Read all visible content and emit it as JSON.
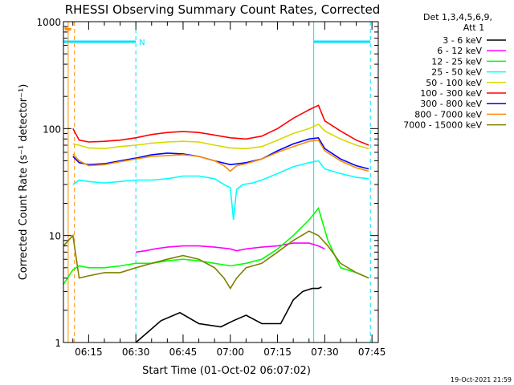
{
  "chart_data": {
    "type": "line",
    "title": "RHESSI Observing Summary Count Rates, Corrected",
    "xlabel": "Start Time (01-Oct-02 06:07:02)",
    "ylabel": "Corrected Count Rate (s⁻¹ detector⁻¹)",
    "yscale": "log",
    "ylim": [
      1,
      1000
    ],
    "xlim_minutes_after_0600": [
      7.0,
      107.0
    ],
    "x_tick_labels": [
      "06:15",
      "06:30",
      "06:45",
      "07:00",
      "07:15",
      "07:30",
      "07:45"
    ],
    "x_tick_minutes_after_0600": [
      15,
      30,
      45,
      60,
      75,
      90,
      105
    ],
    "y_tick_labels": [
      "1",
      "10",
      "100",
      "1000"
    ],
    "y_tick_values": [
      1,
      10,
      100,
      1000
    ],
    "legend_header": [
      "Det 1,3,4,5,6,9,",
      "Att 1"
    ],
    "legend_position": "top-right, outside plot",
    "timestamp": "19-Oct-2021 21:59",
    "flag_labels": {
      "s": "S",
      "n": "N"
    },
    "flags": [
      {
        "name": "S",
        "color": "#ff8c00",
        "level": 850,
        "x_start": 7.5,
        "x_end": 9.5
      },
      {
        "name": "N",
        "color": "#00e0ff",
        "level": 650,
        "x_start": 7.0,
        "x_end": 30.0
      },
      {
        "name": "N",
        "color": "#00e0ff",
        "level": 650,
        "x_start": 86.5,
        "x_end": 104.5
      }
    ],
    "vertical_lines": [
      {
        "x": 8.5,
        "color": "#ff8c00",
        "style": "solid"
      },
      {
        "x": 10.5,
        "color": "#ff8c00",
        "style": "dashed"
      },
      {
        "x": 30.0,
        "color": "#00e0ff",
        "style": "dashed"
      },
      {
        "x": 86.5,
        "color": "#00e0ff",
        "style": "solid"
      },
      {
        "x": 104.5,
        "color": "#00e0ff",
        "style": "dashed"
      }
    ],
    "series": [
      {
        "name": "3 - 6 keV",
        "color": "#000000",
        "x": [
          30,
          38,
          44,
          50,
          57,
          61,
          65,
          70,
          76,
          80,
          83,
          86,
          88,
          89
        ],
        "y": [
          1.0,
          1.6,
          1.9,
          1.5,
          1.4,
          1.6,
          1.8,
          1.5,
          1.5,
          2.5,
          3.0,
          3.2,
          3.2,
          3.3
        ]
      },
      {
        "name": "6 - 12 keV",
        "color": "#ff00ff",
        "x": [
          30,
          33,
          36,
          40,
          45,
          50,
          55,
          60,
          62,
          65,
          70,
          75,
          80,
          85,
          88,
          90
        ],
        "y": [
          7.0,
          7.2,
          7.5,
          7.8,
          8.0,
          8.0,
          7.8,
          7.5,
          7.2,
          7.5,
          7.8,
          8.0,
          8.5,
          8.5,
          8.0,
          7.5
        ]
      },
      {
        "name": "12 - 25 keV",
        "color": "#00ff00",
        "x": [
          7,
          10,
          12,
          15,
          20,
          25,
          30,
          35,
          40,
          45,
          50,
          55,
          60,
          65,
          70,
          75,
          80,
          85,
          88,
          91,
          95,
          100,
          104
        ],
        "y": [
          3.5,
          4.8,
          5.2,
          5.0,
          5.0,
          5.2,
          5.5,
          5.5,
          5.8,
          6.0,
          5.8,
          5.5,
          5.2,
          5.5,
          6.0,
          7.5,
          10.0,
          14.0,
          18.0,
          9.0,
          5.0,
          4.5,
          4.0
        ]
      },
      {
        "name": "25 - 50 keV",
        "color": "#00ffff",
        "x": [
          10,
          12,
          15,
          20,
          25,
          30,
          35,
          40,
          45,
          50,
          55,
          58,
          60,
          61,
          62,
          64,
          67,
          70,
          75,
          80,
          85,
          88,
          90,
          95,
          100,
          104
        ],
        "y": [
          30,
          33,
          32,
          31,
          32,
          33,
          33,
          34,
          36,
          36,
          34,
          30,
          28,
          14,
          27,
          30,
          31,
          33,
          38,
          44,
          48,
          50,
          42,
          38,
          35,
          34
        ]
      },
      {
        "name": "50 - 100 keV",
        "color": "#d8d800",
        "x": [
          10,
          12,
          15,
          20,
          25,
          30,
          35,
          40,
          45,
          50,
          55,
          60,
          65,
          70,
          75,
          80,
          85,
          88,
          90,
          95,
          100,
          104
        ],
        "y": [
          72,
          70,
          66,
          65,
          68,
          70,
          73,
          75,
          76,
          75,
          70,
          66,
          65,
          68,
          78,
          90,
          100,
          110,
          95,
          80,
          70,
          65
        ]
      },
      {
        "name": "100 - 300 keV",
        "color": "#ff0000",
        "x": [
          10,
          12,
          15,
          20,
          25,
          30,
          35,
          40,
          45,
          50,
          55,
          60,
          65,
          70,
          75,
          80,
          85,
          88,
          90,
          95,
          100,
          104
        ],
        "y": [
          100,
          78,
          75,
          76,
          78,
          82,
          88,
          92,
          94,
          92,
          87,
          82,
          80,
          85,
          100,
          125,
          150,
          165,
          118,
          95,
          78,
          70
        ]
      },
      {
        "name": "300 - 800 keV",
        "color": "#0000ff",
        "x": [
          10,
          12,
          15,
          20,
          25,
          30,
          35,
          40,
          45,
          50,
          55,
          60,
          65,
          70,
          75,
          80,
          85,
          88,
          90,
          95,
          100,
          104
        ],
        "y": [
          55,
          48,
          46,
          47,
          50,
          53,
          57,
          59,
          58,
          55,
          50,
          46,
          48,
          52,
          62,
          72,
          80,
          82,
          65,
          52,
          45,
          42
        ]
      },
      {
        "name": "800 - 7000 keV",
        "color": "#ff8c00",
        "x": [
          10,
          12,
          15,
          20,
          25,
          30,
          35,
          40,
          45,
          50,
          55,
          58,
          60,
          62,
          65,
          70,
          75,
          80,
          85,
          88,
          90,
          95,
          100,
          104
        ],
        "y": [
          58,
          50,
          45,
          46,
          49,
          52,
          55,
          56,
          57,
          55,
          50,
          45,
          40,
          45,
          47,
          52,
          60,
          68,
          76,
          78,
          62,
          50,
          43,
          40
        ]
      },
      {
        "name": "7000 - 15000 keV",
        "color": "#808000",
        "x": [
          7,
          10,
          12,
          15,
          20,
          25,
          30,
          35,
          40,
          45,
          50,
          55,
          58,
          60,
          62,
          65,
          70,
          75,
          80,
          85,
          88,
          91,
          95,
          100,
          104
        ],
        "y": [
          8.0,
          10.0,
          4.0,
          4.2,
          4.5,
          4.5,
          5.0,
          5.5,
          6.0,
          6.5,
          6.0,
          5.0,
          4.0,
          3.2,
          4.0,
          5.0,
          5.5,
          7.0,
          9.0,
          11.0,
          10.0,
          8.0,
          5.5,
          4.5,
          4.0
        ]
      }
    ]
  }
}
